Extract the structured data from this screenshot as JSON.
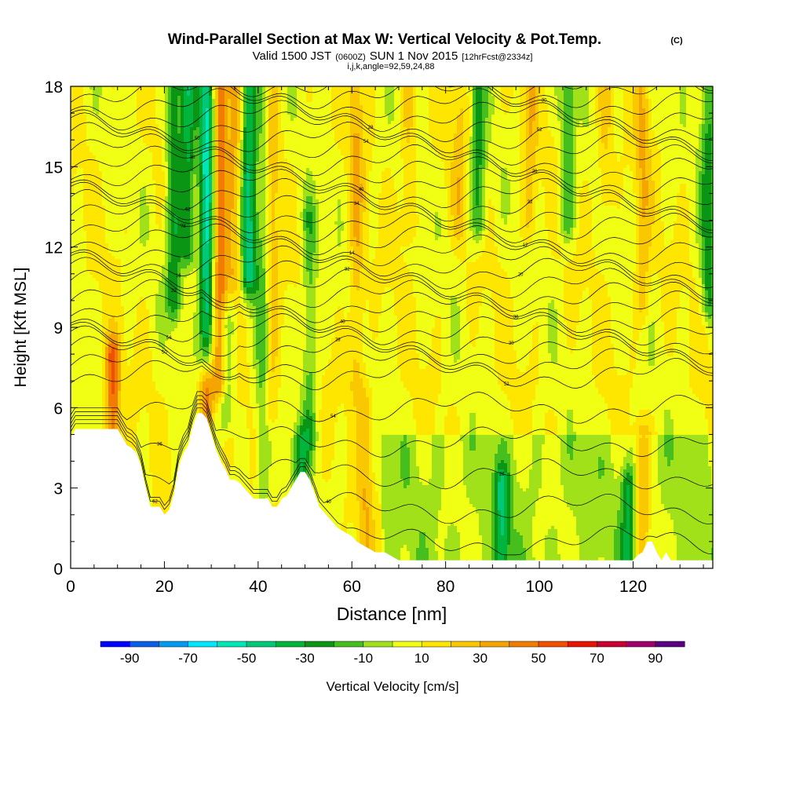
{
  "header": {
    "title": "Wind-Parallel Section at Max W: Vertical Velocity & Pot.Temp.",
    "title_mark": "(C)",
    "valid_prefix": "Valid 1500 JST",
    "valid_utc": "(0600Z)",
    "valid_date": "SUN 1 Nov 2015",
    "forecast": "[12hrFcst@2334z]",
    "section_info": "i,j,k,angle=92,59,24,88"
  },
  "chart_data": {
    "type": "heatmap",
    "xlabel": "Distance [nm]",
    "ylabel": "Height [Kft MSL]",
    "xlim": [
      0,
      137
    ],
    "ylim": [
      0,
      18
    ],
    "x_ticks": [
      0,
      20,
      40,
      60,
      80,
      100,
      120
    ],
    "y_ticks": [
      0,
      3,
      6,
      9,
      12,
      15,
      18
    ],
    "grid": false,
    "colorbar": {
      "label": "Vertical Velocity [cm/s]",
      "ticks": [
        -90,
        -70,
        -50,
        -30,
        -10,
        10,
        30,
        50,
        70,
        90
      ],
      "bins": [
        -100,
        -90,
        -80,
        -70,
        -60,
        -50,
        -40,
        -30,
        -20,
        -10,
        0,
        10,
        20,
        30,
        40,
        50,
        60,
        70,
        80,
        90,
        100
      ],
      "colors": [
        "#0000ff",
        "#0a5fe6",
        "#009bf0",
        "#00e6ff",
        "#00e6b4",
        "#00c878",
        "#00b43c",
        "#0a9614",
        "#46be1e",
        "#a0e119",
        "#f0ff14",
        "#ffe600",
        "#fac800",
        "#f5a500",
        "#f07d00",
        "#f05000",
        "#e61400",
        "#c80032",
        "#a0006e",
        "#5a0082"
      ]
    },
    "terrain_profile": {
      "x": [
        0,
        1,
        3,
        5,
        7,
        9,
        10,
        11,
        12,
        13,
        14,
        15,
        16,
        17,
        18,
        19,
        20,
        21,
        22,
        23,
        24,
        25,
        26,
        27,
        28,
        29,
        30,
        31,
        32,
        33,
        34,
        35,
        36,
        37,
        38,
        39,
        40,
        41,
        42,
        43,
        44,
        45,
        46,
        47,
        48,
        49,
        50,
        51,
        52,
        53,
        54,
        55,
        56,
        57,
        58,
        59,
        60,
        61,
        62,
        63,
        64,
        65,
        66,
        67,
        68,
        69,
        70,
        71,
        72,
        74,
        80,
        90,
        100,
        110,
        120,
        121,
        122,
        123,
        124,
        125,
        126,
        127,
        128,
        129,
        130,
        131,
        132,
        133,
        134,
        135,
        136,
        137
      ],
      "height_kft": [
        4.9,
        5.2,
        5.2,
        5.2,
        5.2,
        5.2,
        5.2,
        4.9,
        4.6,
        4.5,
        4.3,
        3.8,
        3.0,
        2.3,
        2.3,
        2.3,
        2.0,
        2.2,
        2.8,
        3.8,
        4.3,
        4.6,
        5.3,
        5.8,
        5.8,
        5.6,
        5.0,
        4.4,
        4.0,
        3.7,
        3.3,
        3.3,
        3.2,
        3.0,
        2.8,
        2.6,
        2.6,
        2.6,
        2.6,
        2.3,
        2.3,
        2.6,
        2.7,
        3.0,
        3.3,
        3.6,
        3.6,
        3.3,
        2.8,
        2.3,
        2.1,
        1.9,
        1.7,
        1.5,
        1.4,
        1.3,
        1.2,
        1.0,
        0.9,
        0.8,
        0.7,
        0.6,
        0.6,
        0.6,
        0.5,
        0.4,
        0.3,
        0.3,
        0.3,
        0.3,
        0.3,
        0.3,
        0.3,
        0.3,
        0.3,
        0.5,
        0.6,
        1.0,
        1.0,
        0.6,
        0.3,
        0.6,
        0.3,
        0.3,
        0.3,
        0.3,
        0.3,
        0.3,
        0.3,
        0.3,
        0.3,
        0.3
      ]
    },
    "updraft_columns": [
      {
        "x": 9,
        "y_range": [
          5.5,
          7.8
        ],
        "w": 52
      },
      {
        "x": 29,
        "y_range": [
          6,
          7.6
        ],
        "w": 48
      },
      {
        "x": 32,
        "y_range": [
          7,
          18
        ],
        "w": 48
      },
      {
        "x": 35,
        "y_range": [
          11,
          18
        ],
        "w": 32
      },
      {
        "x": 43,
        "y_range": [
          6,
          18
        ],
        "w": 26
      },
      {
        "x": 61,
        "y_range": [
          7,
          18
        ],
        "w": 28
      },
      {
        "x": 63,
        "y_range": [
          0.5,
          6
        ],
        "w": 26
      },
      {
        "x": 72,
        "y_range": [
          13,
          18
        ],
        "w": 24
      },
      {
        "x": 83,
        "y_range": [
          13,
          18
        ],
        "w": 22
      },
      {
        "x": 98,
        "y_range": [
          13,
          18
        ],
        "w": 26
      },
      {
        "x": 114,
        "y_range": [
          14,
          18
        ],
        "w": 24
      },
      {
        "x": 122,
        "y_range": [
          0.5,
          4.5
        ],
        "w": 36
      },
      {
        "x": 122,
        "y_range": [
          10,
          18
        ],
        "w": 28
      }
    ],
    "downdraft_columns": [
      {
        "x": 22,
        "y_range": [
          10,
          18
        ],
        "w": -28
      },
      {
        "x": 25,
        "y_range": [
          12,
          18
        ],
        "w": -32
      },
      {
        "x": 29,
        "y_range": [
          8,
          18
        ],
        "w": -52
      },
      {
        "x": 33,
        "y_range": [
          6,
          9
        ],
        "w": -22
      },
      {
        "x": 38,
        "y_range": [
          11,
          18
        ],
        "w": -42
      },
      {
        "x": 41,
        "y_range": [
          3,
          18
        ],
        "w": -12
      },
      {
        "x": 49,
        "y_range": [
          2.5,
          4.5
        ],
        "w": -26
      },
      {
        "x": 51,
        "y_range": [
          5,
          13
        ],
        "w": -16
      },
      {
        "x": 87,
        "y_range": [
          13,
          18
        ],
        "w": -22
      },
      {
        "x": 92,
        "y_range": [
          0.5,
          3
        ],
        "w": -30
      },
      {
        "x": 106,
        "y_range": [
          13,
          18
        ],
        "w": -18
      },
      {
        "x": 119,
        "y_range": [
          0.5,
          3
        ],
        "w": -24
      },
      {
        "x": 136,
        "y_range": [
          10,
          18
        ],
        "w": -22
      }
    ],
    "theta_contours": {
      "interval_K": 2,
      "labels_shown": [
        "62",
        "40",
        "26",
        "36",
        "54",
        "52",
        "50",
        "28",
        "30",
        "56",
        "40",
        "36",
        "22",
        "82",
        "20",
        "16",
        "14",
        "12",
        "78",
        "34",
        "32"
      ]
    }
  }
}
